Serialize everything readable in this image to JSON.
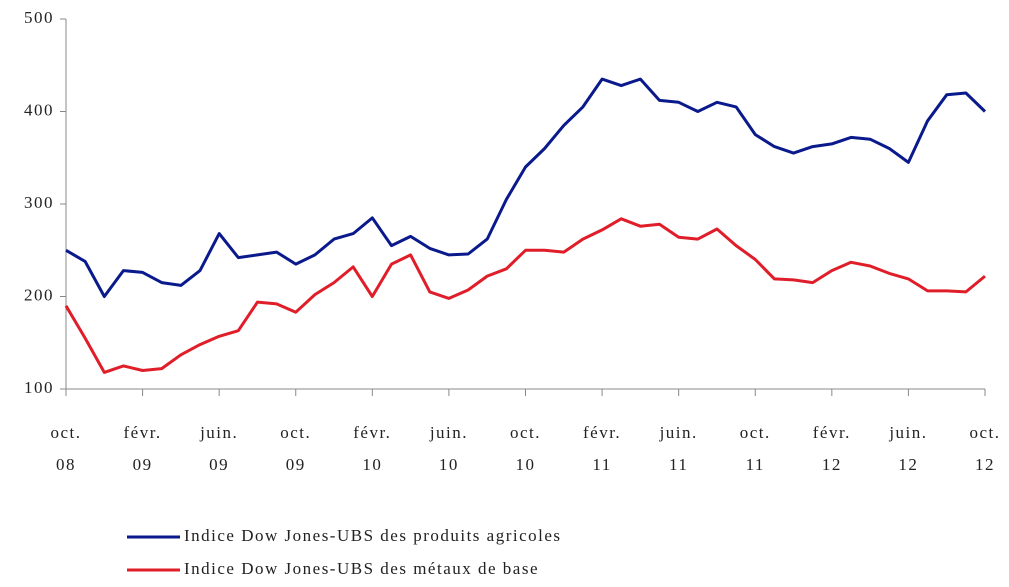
{
  "chart_data": {
    "type": "line",
    "categories": [
      "oct. 08",
      null,
      null,
      null,
      "févr. 09",
      null,
      null,
      null,
      "juin. 09",
      null,
      null,
      null,
      "oct. 09",
      null,
      null,
      null,
      "févr. 10",
      null,
      null,
      null,
      "juin. 10",
      null,
      null,
      null,
      "oct. 10",
      null,
      null,
      null,
      "févr. 11",
      null,
      null,
      null,
      "juin. 11",
      null,
      null,
      null,
      "oct. 11",
      null,
      null,
      null,
      "févr. 12",
      null,
      null,
      null,
      "juin. 12",
      null,
      null,
      null,
      "oct. 12"
    ],
    "series": [
      {
        "name": "Indice Dow Jones-UBS des produits agricoles",
        "color": "#0a1a8c",
        "values": [
          250,
          238,
          200,
          228,
          226,
          215,
          212,
          228,
          268,
          242,
          245,
          248,
          235,
          245,
          262,
          268,
          285,
          255,
          265,
          252,
          245,
          246,
          262,
          305,
          340,
          360,
          385,
          405,
          435,
          428,
          435,
          412,
          410,
          400,
          410,
          405,
          375,
          362,
          355,
          362,
          365,
          372,
          370,
          360,
          345,
          390,
          418,
          420,
          400
        ]
      },
      {
        "name": "Indice Dow Jones-UBS des métaux de base",
        "color": "#e01e2a",
        "values": [
          190,
          155,
          118,
          125,
          120,
          122,
          137,
          148,
          157,
          163,
          194,
          192,
          183,
          202,
          215,
          232,
          200,
          235,
          245,
          205,
          198,
          207,
          222,
          230,
          250,
          250,
          248,
          262,
          272,
          284,
          276,
          278,
          264,
          262,
          273,
          255,
          240,
          219,
          218,
          215,
          228,
          237,
          233,
          225,
          219,
          206,
          206,
          205,
          222
        ]
      }
    ],
    "ylim": [
      100,
      500
    ],
    "yticks": [
      100,
      200,
      300,
      400,
      500
    ]
  }
}
